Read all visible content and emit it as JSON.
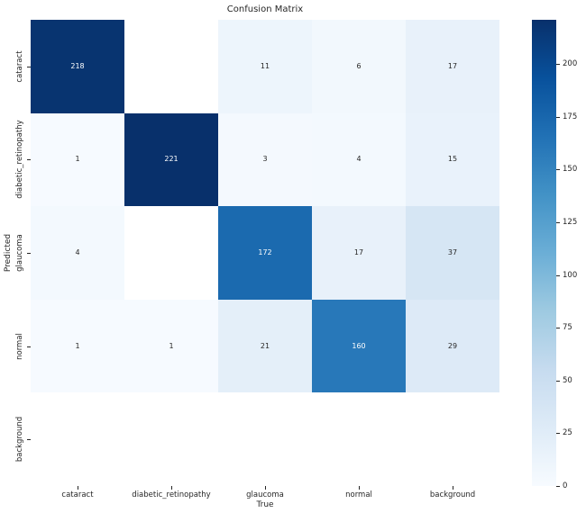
{
  "figure": {
    "background": "#ffffff"
  },
  "chart_data": {
    "type": "heatmap",
    "title": "Confusion Matrix",
    "xlabel": "True",
    "ylabel": "Predicted",
    "x_categories": [
      "cataract",
      "diabetic_retinopathy",
      "glaucoma",
      "normal",
      "background"
    ],
    "y_categories": [
      "cataract",
      "diabetic_retinopathy",
      "glaucoma",
      "normal",
      "background"
    ],
    "matrix": [
      [
        218,
        null,
        11,
        6,
        17
      ],
      [
        1,
        221,
        3,
        4,
        15
      ],
      [
        4,
        null,
        172,
        17,
        37
      ],
      [
        1,
        1,
        21,
        160,
        29
      ],
      [
        null,
        null,
        null,
        null,
        null
      ]
    ],
    "vmin": 0,
    "vmax": 221,
    "colormap": "Blues",
    "colormap_stops": [
      "#f7fbff",
      "#deebf7",
      "#c6dbef",
      "#9ecae1",
      "#6baed6",
      "#4292c6",
      "#2171b5",
      "#08519c",
      "#08306b"
    ],
    "colorbar_ticks": [
      0,
      25,
      50,
      75,
      100,
      125,
      150,
      175,
      200
    ],
    "null_cell_color": "#ffffff",
    "annotation_text_dark": "#262626",
    "annotation_text_light": "#ffffff",
    "axis_text_color": "#262626",
    "grid": false,
    "legend_position": "right-colorbar"
  }
}
